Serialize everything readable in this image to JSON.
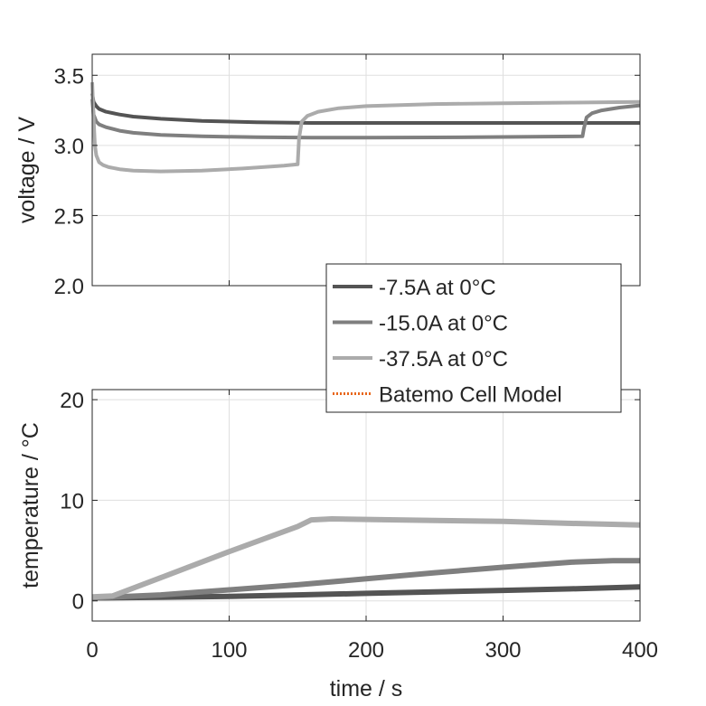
{
  "chart_data": [
    {
      "type": "line",
      "title": "",
      "xlabel": "",
      "ylabel": "voltage / V",
      "xlim": [
        0,
        400
      ],
      "ylim": [
        2.0,
        3.65
      ],
      "xticks": [
        0,
        100,
        200,
        300,
        400
      ],
      "yticks": [
        2.0,
        2.5,
        3.0,
        3.5
      ],
      "ytick_labels": [
        "2.0",
        "2.5",
        "3.0",
        "3.5"
      ],
      "grid": true,
      "series": [
        {
          "name": "-7.5A at 0°C",
          "color": "#545454",
          "x": [
            0,
            1,
            3,
            5,
            10,
            20,
            30,
            50,
            80,
            120,
            160,
            200,
            250,
            300,
            360,
            370,
            400
          ],
          "y": [
            3.37,
            3.31,
            3.28,
            3.26,
            3.24,
            3.22,
            3.205,
            3.19,
            3.175,
            3.165,
            3.16,
            3.16,
            3.16,
            3.16,
            3.16,
            3.16,
            3.16
          ]
        },
        {
          "name": "-15.0A at 0°C",
          "color": "#7f7f7f",
          "x": [
            0,
            1,
            3,
            5,
            10,
            20,
            30,
            50,
            80,
            120,
            160,
            200,
            250,
            300,
            358,
            359,
            361,
            365,
            372,
            385,
            400
          ],
          "y": [
            3.33,
            3.22,
            3.17,
            3.15,
            3.13,
            3.105,
            3.09,
            3.075,
            3.065,
            3.058,
            3.055,
            3.055,
            3.057,
            3.06,
            3.065,
            3.12,
            3.2,
            3.23,
            3.25,
            3.27,
            3.285
          ]
        },
        {
          "name": "-37.5A at 0°C",
          "color": "#ababab",
          "x": [
            0,
            1,
            2,
            3,
            5,
            8,
            12,
            20,
            30,
            50,
            80,
            110,
            140,
            150,
            151,
            153,
            157,
            165,
            180,
            200,
            250,
            300,
            350,
            400
          ],
          "y": [
            3.45,
            3.2,
            3.0,
            2.93,
            2.88,
            2.86,
            2.845,
            2.83,
            2.82,
            2.815,
            2.82,
            2.835,
            2.855,
            2.865,
            3.05,
            3.17,
            3.21,
            3.24,
            3.265,
            3.28,
            3.295,
            3.3,
            3.305,
            3.31
          ]
        }
      ]
    },
    {
      "type": "line",
      "title": "",
      "xlabel": "time / s",
      "ylabel": "temperature / °C",
      "xlim": [
        0,
        400
      ],
      "ylim": [
        -2,
        21
      ],
      "xticks": [
        0,
        100,
        200,
        300,
        400
      ],
      "xtick_labels": [
        "0",
        "100",
        "200",
        "300",
        "400"
      ],
      "yticks": [
        0,
        10,
        20
      ],
      "ytick_labels": [
        "0",
        "10",
        "20"
      ],
      "grid": true,
      "series": [
        {
          "name": "-7.5A at 0°C",
          "color": "#545454",
          "x": [
            0,
            10,
            50,
            100,
            150,
            200,
            250,
            300,
            350,
            400
          ],
          "y": [
            0.3,
            0.3,
            0.35,
            0.45,
            0.6,
            0.75,
            0.9,
            1.05,
            1.2,
            1.4
          ]
        },
        {
          "name": "-15.0A at 0°C",
          "color": "#7f7f7f",
          "x": [
            0,
            10,
            50,
            100,
            150,
            200,
            250,
            300,
            350,
            380,
            400
          ],
          "y": [
            0.3,
            0.35,
            0.6,
            1.1,
            1.6,
            2.2,
            2.8,
            3.35,
            3.85,
            4.0,
            4.0
          ]
        },
        {
          "name": "-37.5A at 0°C",
          "color": "#ababab",
          "x": [
            0,
            15,
            50,
            100,
            150,
            160,
            175,
            200,
            250,
            300,
            350,
            400
          ],
          "y": [
            0.4,
            0.5,
            2.3,
            4.9,
            7.4,
            8.05,
            8.15,
            8.1,
            8.0,
            7.9,
            7.7,
            7.55
          ]
        }
      ]
    }
  ],
  "legend": {
    "placement": "top-right of lower plot",
    "entries": [
      {
        "label": "-7.5A at 0°C",
        "color": "#545454",
        "style": "solid"
      },
      {
        "label": "-15.0A at 0°C",
        "color": "#7f7f7f",
        "style": "solid"
      },
      {
        "label": "-37.5A at 0°C",
        "color": "#ababab",
        "style": "solid"
      },
      {
        "label": "Batemo Cell Model",
        "color": "#e8661a",
        "style": "dotted"
      }
    ]
  }
}
